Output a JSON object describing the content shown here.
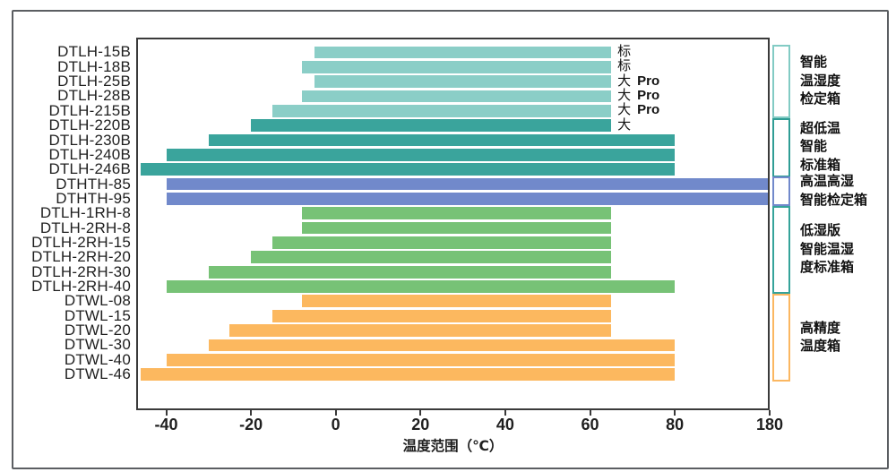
{
  "chart_data": {
    "type": "bar",
    "orientation": "horizontal",
    "title": "",
    "xlabel": "温度范围（℃）",
    "ylabel": "",
    "x_tick_values": [
      -40,
      -20,
      0,
      20,
      40,
      60,
      80,
      180
    ],
    "x_tick_labels": [
      "-40",
      "-20",
      "0",
      "20",
      "40",
      "60",
      "80",
      "180"
    ],
    "axis_note": "x axis linear from -47 to 80; segment 80..180 compressed into one tick step at right edge",
    "grid": false,
    "bars": [
      {
        "model": "DTLH-15B",
        "min": -5,
        "max": 65,
        "series": "light_teal",
        "tag": "标",
        "tag_pro": false
      },
      {
        "model": "DTLH-18B",
        "min": -8,
        "max": 65,
        "series": "light_teal",
        "tag": "标",
        "tag_pro": false
      },
      {
        "model": "DTLH-25B",
        "min": -5,
        "max": 65,
        "series": "light_teal",
        "tag": "大",
        "tag_pro": true
      },
      {
        "model": "DTLH-28B",
        "min": -8,
        "max": 65,
        "series": "light_teal",
        "tag": "大",
        "tag_pro": true
      },
      {
        "model": "DTLH-215B",
        "min": -15,
        "max": 65,
        "series": "light_teal",
        "tag": "大",
        "tag_pro": true
      },
      {
        "model": "DTLH-220B",
        "min": -20,
        "max": 65,
        "series": "teal",
        "tag": "大",
        "tag_pro": false
      },
      {
        "model": "DTLH-230B",
        "min": -30,
        "max": 80,
        "series": "teal",
        "tag": "",
        "tag_pro": false
      },
      {
        "model": "DTLH-240B",
        "min": -40,
        "max": 80,
        "series": "teal",
        "tag": "",
        "tag_pro": false
      },
      {
        "model": "DTLH-246B",
        "min": -46,
        "max": 80,
        "series": "teal",
        "tag": "",
        "tag_pro": false
      },
      {
        "model": "DTHTH-85",
        "min": -40,
        "max": 180,
        "series": "blue",
        "tag": "",
        "tag_pro": false
      },
      {
        "model": "DTHTH-95",
        "min": -40,
        "max": 180,
        "series": "blue",
        "tag": "",
        "tag_pro": false
      },
      {
        "model": "DTLH-1RH-8",
        "min": -8,
        "max": 65,
        "series": "green",
        "tag": "",
        "tag_pro": false
      },
      {
        "model": "DTLH-2RH-8",
        "min": -8,
        "max": 65,
        "series": "green",
        "tag": "",
        "tag_pro": false
      },
      {
        "model": "DTLH-2RH-15",
        "min": -15,
        "max": 65,
        "series": "green",
        "tag": "",
        "tag_pro": false
      },
      {
        "model": "DTLH-2RH-20",
        "min": -20,
        "max": 65,
        "series": "green",
        "tag": "",
        "tag_pro": false
      },
      {
        "model": "DTLH-2RH-30",
        "min": -30,
        "max": 65,
        "series": "green",
        "tag": "",
        "tag_pro": false
      },
      {
        "model": "DTLH-2RH-40",
        "min": -40,
        "max": 80,
        "series": "green",
        "tag": "",
        "tag_pro": false
      },
      {
        "model": "DTWL-08",
        "min": -8,
        "max": 65,
        "series": "orange",
        "tag": "",
        "tag_pro": false
      },
      {
        "model": "DTWL-15",
        "min": -15,
        "max": 65,
        "series": "orange",
        "tag": "",
        "tag_pro": false
      },
      {
        "model": "DTWL-20",
        "min": -25,
        "max": 65,
        "series": "orange",
        "tag": "",
        "tag_pro": false
      },
      {
        "model": "DTWL-30",
        "min": -30,
        "max": 80,
        "series": "orange",
        "tag": "",
        "tag_pro": false
      },
      {
        "model": "DTWL-40",
        "min": -40,
        "max": 80,
        "series": "orange",
        "tag": "",
        "tag_pro": false
      },
      {
        "model": "DTWL-46",
        "min": -46,
        "max": 80,
        "series": "orange",
        "tag": "",
        "tag_pro": false
      }
    ],
    "groups": [
      {
        "lines": [
          "智能",
          "温湿度",
          "检定箱"
        ],
        "first_row": 0,
        "last_row": 4,
        "color_key": "bracket_light_teal"
      },
      {
        "lines": [
          "超低温",
          "智能",
          "标准箱"
        ],
        "first_row": 5,
        "last_row": 8,
        "color_key": "bracket_teal"
      },
      {
        "lines": [
          "高温高湿",
          "智能检定箱"
        ],
        "first_row": 9,
        "last_row": 10,
        "color_key": "bracket_blue"
      },
      {
        "lines": [
          "低湿版",
          "智能温湿",
          "度标准箱"
        ],
        "first_row": 11,
        "last_row": 16,
        "color_key": "bracket_teal2"
      },
      {
        "lines": [
          "高精度",
          "温度箱"
        ],
        "first_row": 17,
        "last_row": 22,
        "color_key": "bracket_orange"
      }
    ],
    "tag_pro_label": "Pro",
    "tag_anchor_value": 65
  },
  "colors": {
    "light_teal": "#8BCEC7",
    "teal": "#3AA49C",
    "blue": "#7189CB",
    "green": "#77C276",
    "orange": "#FCB85F",
    "bracket_light_teal": "#82CBC4",
    "bracket_teal": "#2F9D95",
    "bracket_blue": "#7189CB",
    "bracket_teal2": "#35A39A",
    "bracket_orange": "#FBB761",
    "plot_border": "#3A3A3A",
    "outer_border": "#5B5E62",
    "text": "#1A1A1A"
  }
}
